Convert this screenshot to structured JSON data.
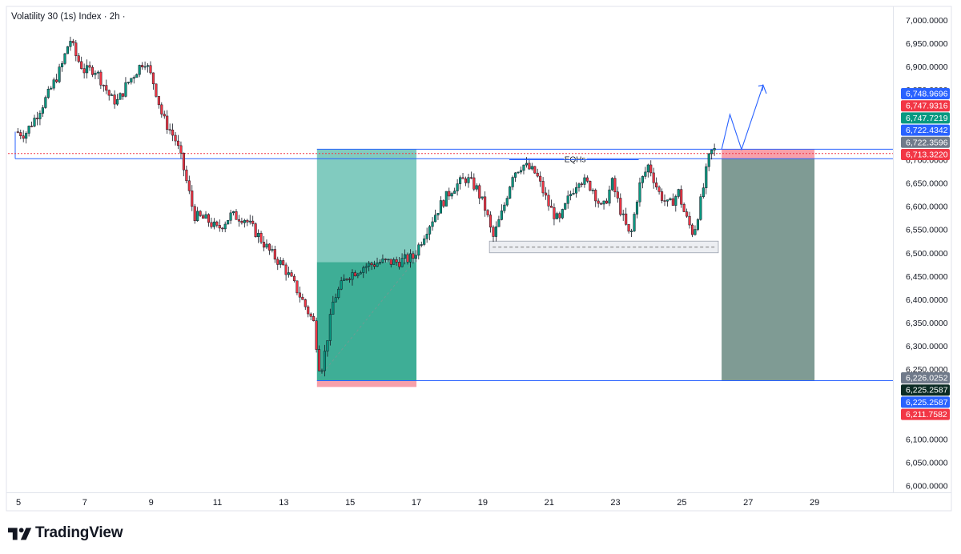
{
  "header": {
    "title": "Volatility 30 (1s) Index · 2h ·"
  },
  "brand": {
    "name": "TradingView"
  },
  "colors": {
    "up": "#089981",
    "down": "#f23645",
    "level": "#2962ff",
    "entry_zone": "#81cbbf",
    "profit_zone": "#3eae96",
    "stop_zone": "#f7a0aa",
    "short_zone": "#7f9b94"
  },
  "chart_data": {
    "type": "candlestick",
    "title": "Volatility 30 (1s) Index · 2h ·",
    "x_ticks": [
      "5",
      "7",
      "9",
      "11",
      "13",
      "15",
      "17",
      "19",
      "21",
      "23",
      "25",
      "27",
      "29"
    ],
    "y_ticks": [
      "7,000.0000",
      "6,950.0000",
      "6,900.0000",
      "6,850.0000",
      "6,700.0000",
      "6,650.0000",
      "6,600.0000",
      "6,550.0000",
      "6,500.0000",
      "6,450.0000",
      "6,400.0000",
      "6,350.0000",
      "6,300.0000",
      "6,250.0000",
      "6,100.0000",
      "6,050.0000",
      "6,000.0000"
    ],
    "ylim": [
      5975,
      7025
    ],
    "grid": false,
    "price_path_days": [
      [
        4.9,
        6760
      ],
      [
        5.2,
        6755
      ],
      [
        5.5,
        6790
      ],
      [
        5.9,
        6840
      ],
      [
        6.3,
        6900
      ],
      [
        6.55,
        6960
      ],
      [
        6.75,
        6920
      ],
      [
        7.0,
        6890
      ],
      [
        7.3,
        6895
      ],
      [
        7.5,
        6870
      ],
      [
        7.8,
        6830
      ],
      [
        8.0,
        6825
      ],
      [
        8.25,
        6860
      ],
      [
        8.5,
        6885
      ],
      [
        8.8,
        6915
      ],
      [
        9.1,
        6860
      ],
      [
        9.35,
        6790
      ],
      [
        9.6,
        6760
      ],
      [
        9.75,
        6740
      ],
      [
        9.95,
        6690
      ],
      [
        10.3,
        6580
      ],
      [
        10.7,
        6570
      ],
      [
        11.0,
        6550
      ],
      [
        11.4,
        6580
      ],
      [
        11.8,
        6575
      ],
      [
        12.2,
        6540
      ],
      [
        12.6,
        6500
      ],
      [
        13.0,
        6470
      ],
      [
        13.4,
        6420
      ],
      [
        13.9,
        6350
      ],
      [
        14.1,
        6240
      ],
      [
        14.25,
        6290
      ],
      [
        14.5,
        6400
      ],
      [
        14.9,
        6450
      ],
      [
        15.4,
        6470
      ],
      [
        15.9,
        6480
      ],
      [
        16.4,
        6480
      ],
      [
        16.9,
        6490
      ],
      [
        17.3,
        6550
      ],
      [
        17.7,
        6600
      ],
      [
        18.1,
        6640
      ],
      [
        18.5,
        6660
      ],
      [
        18.8,
        6640
      ],
      [
        19.1,
        6590
      ],
      [
        19.3,
        6530
      ],
      [
        19.6,
        6590
      ],
      [
        19.9,
        6670
      ],
      [
        20.2,
        6690
      ],
      [
        20.6,
        6670
      ],
      [
        21.0,
        6600
      ],
      [
        21.3,
        6565
      ],
      [
        21.6,
        6620
      ],
      [
        21.9,
        6660
      ],
      [
        22.3,
        6640
      ],
      [
        22.6,
        6590
      ],
      [
        22.9,
        6650
      ],
      [
        23.2,
        6580
      ],
      [
        23.45,
        6530
      ],
      [
        23.7,
        6640
      ],
      [
        24.0,
        6690
      ],
      [
        24.3,
        6630
      ],
      [
        24.6,
        6600
      ],
      [
        24.9,
        6630
      ],
      [
        25.1,
        6580
      ],
      [
        25.35,
        6540
      ],
      [
        25.6,
        6620
      ],
      [
        25.8,
        6700
      ],
      [
        25.95,
        6725
      ],
      [
        26.05,
        6710
      ]
    ],
    "range_lows_days": {
      "14.1": 6226.0252
    },
    "annotations": [
      "EQHs"
    ],
    "levels": {
      "upper_resistance": 6722.4342,
      "previous_resistance": 6713.322,
      "lower_support": 6225.2587,
      "current_price": 6713.322,
      "eqh_level": 6700
    },
    "zones": {
      "long_entry_day_range": [
        14.0,
        17.0
      ],
      "long_entry_price_range": [
        6480,
        6722.4342
      ],
      "long_profit_price_range": [
        6226,
        6480
      ],
      "long_stop_price_range": [
        6211.7582,
        6226
      ],
      "liquidity_box_day_range": [
        19.2,
        26.1
      ],
      "liquidity_box_price_range": [
        6500,
        6525
      ],
      "short_day_range": [
        26.2,
        29.0
      ],
      "short_stop_price_range": [
        6702,
        6722.4342
      ],
      "short_target_price_range": [
        6225.2587,
        6702
      ]
    },
    "projection_path": [
      [
        26.2,
        6722
      ],
      [
        26.45,
        6797
      ],
      [
        26.8,
        6722
      ],
      [
        27.45,
        6860
      ],
      [
        27.55,
        6842
      ]
    ],
    "price_labels": [
      {
        "value": "6,748.9696",
        "color": "#2962ff",
        "price": 6748.9696
      },
      {
        "value": "6,747.9316",
        "color": "#f23645",
        "price": 6747.9316
      },
      {
        "value": "6,747.7219",
        "color": "#089981",
        "price": 6747.7219
      },
      {
        "value": "6,722.4342",
        "color": "#2962ff",
        "price": 6722.4342
      },
      {
        "value": "6,722.3596",
        "color": "#707a8a",
        "price": 6722.3596
      },
      {
        "value": "6,713.3220",
        "color": "#f23645",
        "price": 6713.322
      },
      {
        "value": "6,226.0252",
        "color": "#707a8a",
        "price": 6226.0252
      },
      {
        "value": "6,225.2587",
        "color": "#0b2b24",
        "price": 6225.2587
      },
      {
        "value": "6,225.2587",
        "color": "#2962ff",
        "price": 6225.2587
      },
      {
        "value": "6,211.7582",
        "color": "#f23645",
        "price": 6211.7582
      }
    ]
  }
}
